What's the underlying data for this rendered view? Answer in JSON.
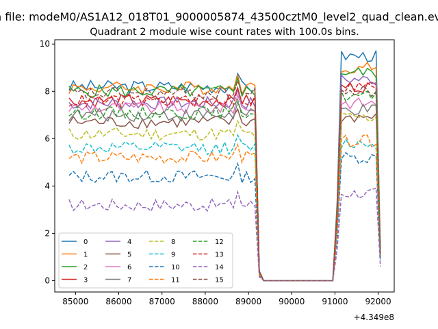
{
  "page": {
    "suptitle": "n file: modeM0/AS1A12_018T01_9000005874_43500cztM0_level2_quad_clean.evt",
    "title": "Quadrant 2 module wise count rates with 100.0s bins.",
    "x_offset_label": "+4.349e8"
  },
  "chart_data": {
    "type": "line",
    "title": "Quadrant 2 module wise count rates with 100.0s bins.",
    "xlabel": "",
    "ylabel": "",
    "x_offset": 434900000,
    "xlim": [
      84520,
      92370
    ],
    "ylim": [
      -0.48,
      10.18
    ],
    "xticks": [
      85000,
      86000,
      87000,
      88000,
      89000,
      90000,
      91000,
      92000
    ],
    "xtick_labels": [
      "85000",
      "86000",
      "87000",
      "88000",
      "89000",
      "90000",
      "91000",
      "92000"
    ],
    "yticks": [
      0,
      2,
      4,
      6,
      8,
      10
    ],
    "ytick_labels": [
      "0",
      "2",
      "4",
      "6",
      "8",
      "10"
    ],
    "grid": false,
    "legend": {
      "position": "lower-left",
      "columns": 4
    },
    "segments": [
      {
        "x_start": 84850,
        "x_end": 89250,
        "step": 100
      },
      {
        "x_start": 89350,
        "x_end": 90950,
        "step": 100,
        "flat": true
      },
      {
        "x_start": 91050,
        "x_end": 92050,
        "step": 100
      }
    ],
    "series": [
      {
        "name": "0",
        "color": "#1f77b4",
        "dash": "solid",
        "level1": 8.2,
        "level2": 9.5,
        "tail": 1.3
      },
      {
        "name": "1",
        "color": "#ff7f0e",
        "dash": "solid",
        "level1": 8.15,
        "level2": 9.0,
        "tail": 1.4
      },
      {
        "name": "2",
        "color": "#2ca02c",
        "dash": "solid",
        "level1": 8.0,
        "level2": 8.8,
        "tail": 1.2
      },
      {
        "name": "3",
        "color": "#d62728",
        "dash": "solid",
        "level1": 7.6,
        "level2": 8.2,
        "tail": 1.1
      },
      {
        "name": "4",
        "color": "#9467bd",
        "dash": "solid",
        "level1": 7.5,
        "level2": 8.5,
        "tail": 1.0
      },
      {
        "name": "5",
        "color": "#8c564b",
        "dash": "solid",
        "level1": 6.7,
        "level2": 6.9,
        "tail": 1.0
      },
      {
        "name": "6",
        "color": "#e377c2",
        "dash": "solid",
        "level1": 7.3,
        "level2": 7.5,
        "tail": 1.1
      },
      {
        "name": "7",
        "color": "#7f7f7f",
        "dash": "solid",
        "level1": 7.0,
        "level2": 7.2,
        "tail": 1.0
      },
      {
        "name": "8",
        "color": "#bcbd22",
        "dash": "dashed",
        "level1": 6.2,
        "level2": 6.9,
        "tail": 1.0
      },
      {
        "name": "9",
        "color": "#17becf",
        "dash": "dashed",
        "level1": 5.6,
        "level2": 5.8,
        "tail": 0.9
      },
      {
        "name": "10",
        "color": "#1f77b4",
        "dash": "dashed",
        "level1": 4.4,
        "level2": 5.2,
        "tail": 0.9
      },
      {
        "name": "11",
        "color": "#ff7f0e",
        "dash": "dashed",
        "level1": 5.2,
        "level2": 5.9,
        "tail": 1.0
      },
      {
        "name": "12",
        "color": "#2ca02c",
        "dash": "dashed",
        "level1": 7.1,
        "level2": 7.8,
        "tail": 1.0
      },
      {
        "name": "13",
        "color": "#d62728",
        "dash": "dashed",
        "level1": 7.6,
        "level2": 8.2,
        "tail": 1.1
      },
      {
        "name": "14",
        "color": "#9467bd",
        "dash": "dashed",
        "level1": 3.2,
        "level2": 3.7,
        "tail": 0.6
      },
      {
        "name": "15",
        "color": "#8c564b",
        "dash": "dashed",
        "level1": 7.9,
        "level2": 8.0,
        "tail": 1.0
      }
    ]
  }
}
